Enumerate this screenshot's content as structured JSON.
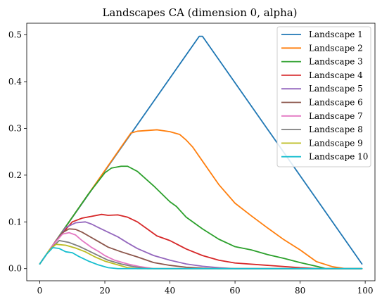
{
  "chart_data": {
    "type": "line",
    "title": "Landscapes CA (dimension 0, alpha)",
    "xlabel": "",
    "ylabel": "",
    "xlim": [
      -4,
      103
    ],
    "ylim": [
      -0.026,
      0.525
    ],
    "xticks": [
      0,
      20,
      40,
      60,
      80,
      100
    ],
    "yticks": [
      0.0,
      0.1,
      0.2,
      0.3,
      0.4,
      0.5
    ],
    "xtick_labels": [
      "0",
      "20",
      "40",
      "60",
      "80",
      "100"
    ],
    "ytick_labels": [
      "0.0",
      "0.1",
      "0.2",
      "0.3",
      "0.4",
      "0.5"
    ],
    "grid": false,
    "legend_position": "top-right",
    "series": [
      {
        "name": "Landscape 1",
        "color": "#1f77b4",
        "points": [
          [
            0,
            0.01
          ],
          [
            49,
            0.497
          ],
          [
            50,
            0.497
          ],
          [
            99,
            0.01
          ]
        ]
      },
      {
        "name": "Landscape 2",
        "color": "#ff7f0e",
        "points": [
          [
            0,
            0.01
          ],
          [
            5,
            0.06
          ],
          [
            10,
            0.11
          ],
          [
            15,
            0.16
          ],
          [
            20,
            0.21
          ],
          [
            25,
            0.26
          ],
          [
            28,
            0.29
          ],
          [
            30,
            0.294
          ],
          [
            36,
            0.297
          ],
          [
            40,
            0.293
          ],
          [
            43,
            0.287
          ],
          [
            45,
            0.275
          ],
          [
            47,
            0.26
          ],
          [
            50,
            0.23
          ],
          [
            55,
            0.18
          ],
          [
            60,
            0.14
          ],
          [
            65,
            0.113
          ],
          [
            70,
            0.087
          ],
          [
            75,
            0.062
          ],
          [
            80,
            0.04
          ],
          [
            85,
            0.015
          ],
          [
            90,
            0.004
          ],
          [
            94,
            0.0
          ],
          [
            99,
            0.0
          ]
        ]
      },
      {
        "name": "Landscape 3",
        "color": "#2ca02c",
        "points": [
          [
            0,
            0.01
          ],
          [
            5,
            0.06
          ],
          [
            10,
            0.11
          ],
          [
            15,
            0.16
          ],
          [
            20,
            0.205
          ],
          [
            22,
            0.215
          ],
          [
            25,
            0.219
          ],
          [
            27,
            0.219
          ],
          [
            30,
            0.208
          ],
          [
            35,
            0.177
          ],
          [
            40,
            0.143
          ],
          [
            42,
            0.133
          ],
          [
            45,
            0.11
          ],
          [
            50,
            0.085
          ],
          [
            55,
            0.063
          ],
          [
            60,
            0.047
          ],
          [
            65,
            0.04
          ],
          [
            70,
            0.03
          ],
          [
            75,
            0.022
          ],
          [
            80,
            0.013
          ],
          [
            85,
            0.005
          ],
          [
            88,
            0.0
          ],
          [
            99,
            0.0
          ]
        ]
      },
      {
        "name": "Landscape 4",
        "color": "#d62728",
        "points": [
          [
            0,
            0.01
          ],
          [
            5,
            0.06
          ],
          [
            10,
            0.1
          ],
          [
            13,
            0.108
          ],
          [
            16,
            0.112
          ],
          [
            19,
            0.116
          ],
          [
            21,
            0.114
          ],
          [
            24,
            0.115
          ],
          [
            27,
            0.11
          ],
          [
            30,
            0.1
          ],
          [
            33,
            0.085
          ],
          [
            36,
            0.07
          ],
          [
            40,
            0.06
          ],
          [
            45,
            0.042
          ],
          [
            50,
            0.028
          ],
          [
            55,
            0.018
          ],
          [
            60,
            0.012
          ],
          [
            70,
            0.007
          ],
          [
            80,
            0.002
          ],
          [
            86,
            0.0
          ],
          [
            99,
            0.0
          ]
        ]
      },
      {
        "name": "Landscape 5",
        "color": "#9467bd",
        "points": [
          [
            0,
            0.01
          ],
          [
            4,
            0.05
          ],
          [
            8,
            0.088
          ],
          [
            11,
            0.098
          ],
          [
            14,
            0.1
          ],
          [
            16,
            0.095
          ],
          [
            18,
            0.088
          ],
          [
            21,
            0.078
          ],
          [
            24,
            0.068
          ],
          [
            27,
            0.055
          ],
          [
            30,
            0.043
          ],
          [
            35,
            0.028
          ],
          [
            40,
            0.018
          ],
          [
            45,
            0.01
          ],
          [
            50,
            0.005
          ],
          [
            55,
            0.002
          ],
          [
            60,
            0.0
          ],
          [
            99,
            0.0
          ]
        ]
      },
      {
        "name": "Landscape 6",
        "color": "#8c564b",
        "points": [
          [
            0,
            0.01
          ],
          [
            4,
            0.05
          ],
          [
            7,
            0.077
          ],
          [
            9,
            0.085
          ],
          [
            11,
            0.084
          ],
          [
            13,
            0.078
          ],
          [
            15,
            0.07
          ],
          [
            18,
            0.058
          ],
          [
            21,
            0.046
          ],
          [
            25,
            0.036
          ],
          [
            30,
            0.025
          ],
          [
            35,
            0.013
          ],
          [
            40,
            0.007
          ],
          [
            45,
            0.003
          ],
          [
            50,
            0.001
          ],
          [
            55,
            0.0
          ],
          [
            99,
            0.0
          ]
        ]
      },
      {
        "name": "Landscape 7",
        "color": "#e377c2",
        "points": [
          [
            0,
            0.01
          ],
          [
            4,
            0.05
          ],
          [
            7,
            0.074
          ],
          [
            9,
            0.077
          ],
          [
            11,
            0.072
          ],
          [
            13,
            0.06
          ],
          [
            16,
            0.045
          ],
          [
            18,
            0.037
          ],
          [
            20,
            0.028
          ],
          [
            23,
            0.018
          ],
          [
            27,
            0.01
          ],
          [
            31,
            0.004
          ],
          [
            35,
            0.0
          ],
          [
            99,
            0.0
          ]
        ]
      },
      {
        "name": "Landscape 8",
        "color": "#7f7f7f",
        "points": [
          [
            0,
            0.01
          ],
          [
            3,
            0.04
          ],
          [
            6,
            0.06
          ],
          [
            9,
            0.056
          ],
          [
            12,
            0.048
          ],
          [
            15,
            0.038
          ],
          [
            18,
            0.028
          ],
          [
            21,
            0.018
          ],
          [
            25,
            0.01
          ],
          [
            29,
            0.004
          ],
          [
            33,
            0.0
          ],
          [
            99,
            0.0
          ]
        ]
      },
      {
        "name": "Landscape 9",
        "color": "#bcbd22",
        "points": [
          [
            0,
            0.01
          ],
          [
            3,
            0.04
          ],
          [
            5,
            0.052
          ],
          [
            8,
            0.05
          ],
          [
            11,
            0.044
          ],
          [
            14,
            0.036
          ],
          [
            17,
            0.025
          ],
          [
            20,
            0.016
          ],
          [
            24,
            0.008
          ],
          [
            27,
            0.002
          ],
          [
            30,
            0.0
          ],
          [
            99,
            0.0
          ]
        ]
      },
      {
        "name": "Landscape 10",
        "color": "#17becf",
        "points": [
          [
            0,
            0.01
          ],
          [
            2,
            0.03
          ],
          [
            4,
            0.045
          ],
          [
            6,
            0.043
          ],
          [
            8,
            0.036
          ],
          [
            10,
            0.034
          ],
          [
            12,
            0.026
          ],
          [
            15,
            0.016
          ],
          [
            18,
            0.008
          ],
          [
            21,
            0.002
          ],
          [
            24,
            0.0
          ],
          [
            99,
            0.0
          ]
        ]
      }
    ]
  }
}
